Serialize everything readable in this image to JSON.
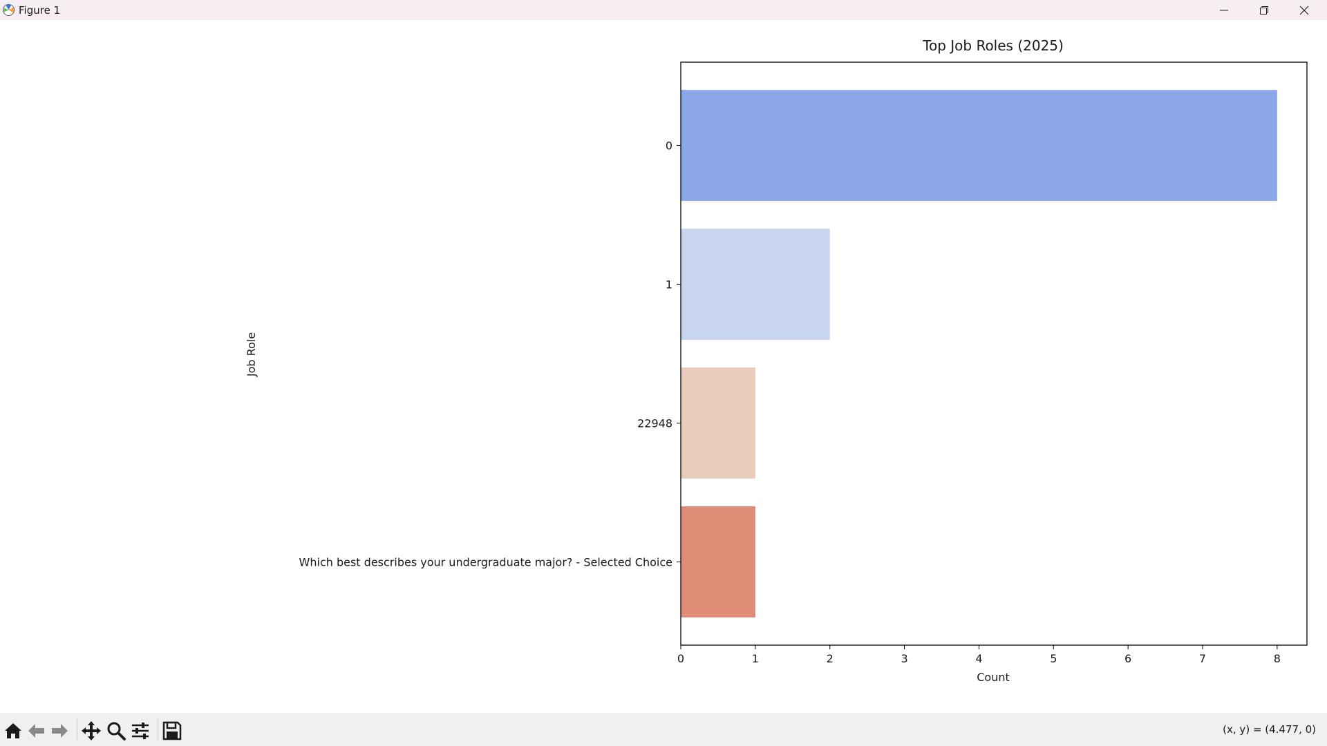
{
  "window": {
    "title": "Figure 1",
    "icons": {
      "app": "matplotlib-icon",
      "minimize": "minimize-icon",
      "maximize": "restore-icon",
      "close": "close-icon"
    }
  },
  "toolbar": {
    "buttons": [
      {
        "icon": "home-icon"
      },
      {
        "icon": "back-arrow-icon"
      },
      {
        "icon": "forward-arrow-icon"
      },
      {
        "icon": "pan-icon"
      },
      {
        "icon": "zoom-icon"
      },
      {
        "icon": "configure-subplots-icon"
      },
      {
        "icon": "save-icon"
      }
    ],
    "coords": "(x, y) = (4.477, 0)"
  },
  "chart_data": {
    "type": "bar",
    "orientation": "horizontal",
    "title": "Top Job Roles (2025)",
    "xlabel": "Count",
    "ylabel": "Job Role",
    "categories": [
      "0",
      "1",
      "22948",
      "Which best describes your undergraduate major? - Selected Choice"
    ],
    "values": [
      8,
      2,
      1,
      1
    ],
    "colors": [
      "#8aa6e8",
      "#c8d5ef",
      "#eaccbf",
      "#de8c76"
    ],
    "xlim": [
      0,
      8.4
    ],
    "xticks": [
      0,
      1,
      2,
      3,
      4,
      5,
      6,
      7,
      8
    ],
    "grid": false
  }
}
